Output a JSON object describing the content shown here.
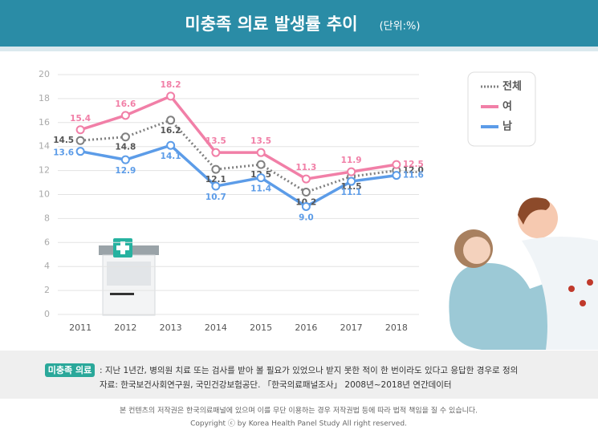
{
  "chart_data": {
    "type": "line",
    "title": "미충족 의료 발생률 추이",
    "unit": "(단위:%)",
    "categories": [
      "2011",
      "2012",
      "2013",
      "2014",
      "2015",
      "2016",
      "2017",
      "2018"
    ],
    "series": [
      {
        "name": "전체",
        "color": "#808080",
        "dash": true,
        "values": [
          14.5,
          14.8,
          16.2,
          12.1,
          12.5,
          10.2,
          11.5,
          12.0
        ],
        "value_labels": [
          "14.5",
          "14.8",
          "16.2",
          "12.1",
          "12.5",
          "10.2",
          "11.5",
          "12.0"
        ]
      },
      {
        "name": "여",
        "color": "#f17fa7",
        "dash": false,
        "values": [
          15.4,
          16.6,
          18.2,
          13.5,
          13.5,
          11.3,
          11.9,
          12.5
        ]
      },
      {
        "name": "남",
        "color": "#5c9ce8",
        "dash": false,
        "values": [
          13.6,
          12.9,
          14.1,
          10.7,
          11.4,
          9.0,
          11.1,
          11.6
        ],
        "value_labels": [
          "13.6",
          "12.9",
          "14.1",
          "10.7",
          "11.4",
          "9.0",
          "11.1",
          "11.6"
        ]
      }
    ],
    "ylim": [
      0,
      20
    ],
    "yticks": [
      0,
      2,
      4,
      6,
      8,
      10,
      12,
      14,
      16,
      18,
      20
    ],
    "grid": true,
    "legend": "top-right"
  },
  "footnote": {
    "tag": "미충족 의료",
    "definition": ": 지난 1년간, 병의원 치료 또는 검사를 받아 볼 필요가 있었으나 받지 못한 적이 한 번이라도 있다고 응답한  경우로 정의",
    "source": "자료: 한국보건사회연구원, 국민건강보험공단. 「한국의료패널조사」 2008년~2018년 연간데이터"
  },
  "copyright": {
    "line1": "본 컨텐츠의 저작권은 한국의료패널에 있으며 이를 무단 이용하는 경우 저작권법 등에 따라 법적 책임을 질 수 있습니다.",
    "line2": "Copyright ⓒ by Korea Health Panel Study All right reserved."
  }
}
